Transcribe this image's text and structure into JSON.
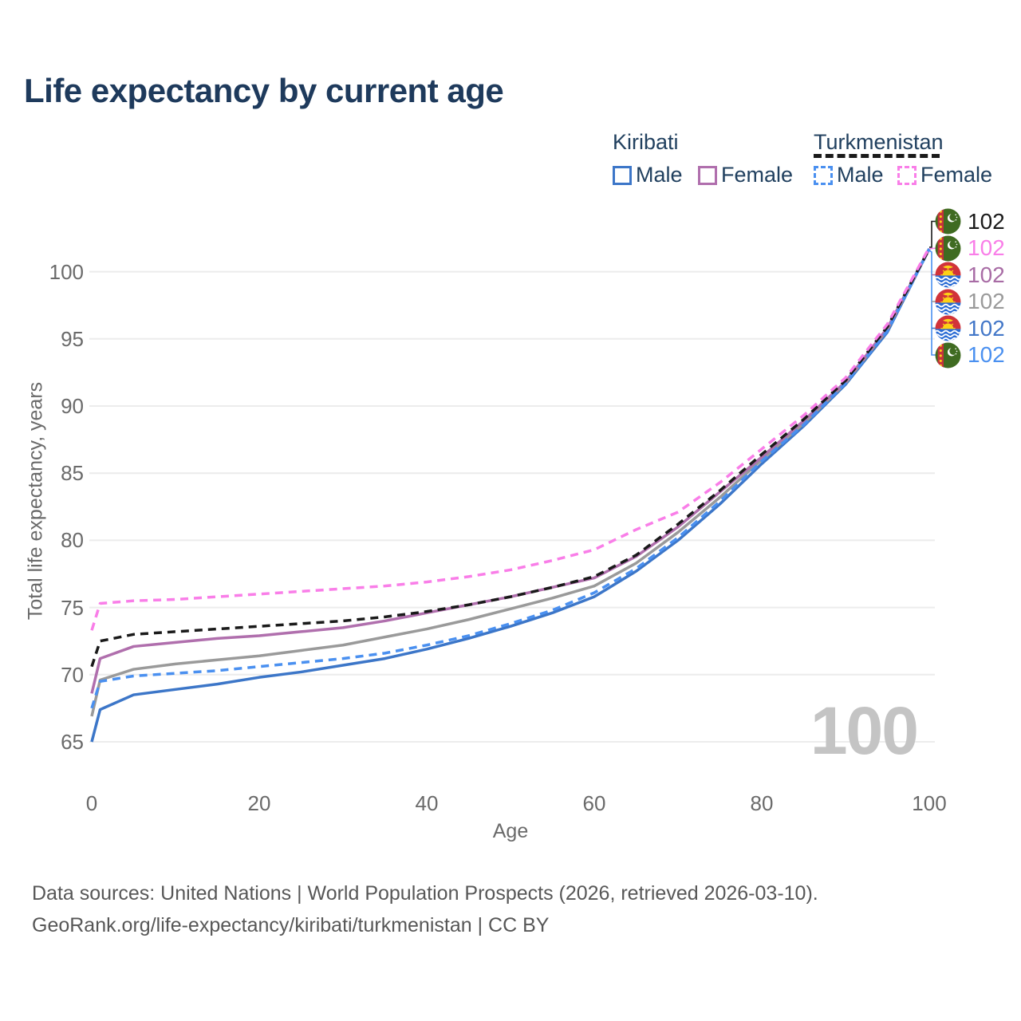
{
  "title": "Life expectancy by current age",
  "colors": {
    "kiribati_male": "#3c76c8",
    "kiribati_female": "#b06fad",
    "kiribati_both": "#9a9a9a",
    "turkmenistan_male": "#4a90f0",
    "turkmenistan_female": "#f97ee8",
    "turkmenistan_both": "#1a1a1a",
    "title_text": "#1e3a5c",
    "axis_text": "#6a6a6a",
    "grid": "#ececec",
    "watermark": "#c4c4c4"
  },
  "legend": {
    "groups": [
      {
        "name": "Kiribati",
        "underline_style": "solid",
        "underline_color": "#9a9a9a",
        "items": [
          {
            "label": "Male",
            "color": "#3c76c8",
            "dashed": false
          },
          {
            "label": "Female",
            "color": "#b06fad",
            "dashed": false
          }
        ]
      },
      {
        "name": "Turkmenistan",
        "underline_style": "dashed",
        "underline_color": "#1a1a1a",
        "items": [
          {
            "label": "Male",
            "color": "#4a90f0",
            "dashed": true
          },
          {
            "label": "Female",
            "color": "#f97ee8",
            "dashed": true
          }
        ]
      }
    ]
  },
  "chart_data": {
    "type": "line",
    "title": "Life expectancy by current age",
    "xlabel": "Age",
    "ylabel": "Total life expectancy, years",
    "xlim": [
      0,
      100
    ],
    "ylim": [
      63,
      103
    ],
    "xticks": [
      0,
      20,
      40,
      60,
      80,
      100
    ],
    "yticks": [
      65,
      70,
      75,
      80,
      85,
      90,
      95,
      100
    ],
    "grid": "horizontal-only",
    "legend_position": "top-right",
    "hovered_age": 100,
    "x": [
      0,
      1,
      5,
      10,
      15,
      20,
      25,
      30,
      35,
      40,
      45,
      50,
      55,
      60,
      65,
      70,
      75,
      80,
      85,
      90,
      95,
      100
    ],
    "series": [
      {
        "name": "Kiribati Male",
        "country": "kiribati",
        "sex": "male",
        "style": "solid",
        "color": "#3c76c8",
        "values": [
          65.0,
          67.4,
          68.5,
          68.9,
          69.3,
          69.8,
          70.2,
          70.7,
          71.2,
          71.9,
          72.7,
          73.6,
          74.6,
          75.8,
          77.7,
          80.0,
          82.7,
          85.7,
          88.5,
          91.6,
          95.5,
          101.7
        ]
      },
      {
        "name": "Kiribati Both sexes",
        "country": "kiribati",
        "sex": "both",
        "style": "solid",
        "color": "#9a9a9a",
        "values": [
          66.9,
          69.6,
          70.4,
          70.8,
          71.1,
          71.4,
          71.8,
          72.2,
          72.8,
          73.4,
          74.1,
          74.9,
          75.7,
          76.6,
          78.3,
          80.6,
          83.2,
          86.0,
          88.7,
          91.7,
          95.7,
          101.7
        ]
      },
      {
        "name": "Kiribati Female",
        "country": "kiribati",
        "sex": "female",
        "style": "solid",
        "color": "#b06fad",
        "values": [
          68.6,
          71.2,
          72.1,
          72.4,
          72.7,
          72.9,
          73.2,
          73.5,
          74.0,
          74.6,
          75.2,
          75.8,
          76.5,
          77.2,
          78.8,
          81.0,
          83.6,
          86.2,
          88.9,
          91.8,
          95.8,
          101.7
        ]
      },
      {
        "name": "Turkmenistan Male",
        "country": "turkmenistan",
        "sex": "male",
        "style": "dashed",
        "color": "#4a90f0",
        "values": [
          67.5,
          69.5,
          69.9,
          70.1,
          70.3,
          70.6,
          70.9,
          71.2,
          71.6,
          72.2,
          72.9,
          73.8,
          74.8,
          76.1,
          77.9,
          80.2,
          82.9,
          85.9,
          88.6,
          91.7,
          95.6,
          101.7
        ]
      },
      {
        "name": "Turkmenistan Both sexes",
        "country": "turkmenistan",
        "sex": "both",
        "style": "dashed",
        "color": "#1a1a1a",
        "values": [
          70.6,
          72.5,
          73.0,
          73.2,
          73.4,
          73.6,
          73.8,
          74.0,
          74.3,
          74.7,
          75.2,
          75.8,
          76.5,
          77.3,
          78.9,
          81.2,
          83.7,
          86.4,
          89.0,
          91.9,
          95.9,
          101.7
        ]
      },
      {
        "name": "Turkmenistan Female",
        "country": "turkmenistan",
        "sex": "female",
        "style": "dashed",
        "color": "#f97ee8",
        "values": [
          73.3,
          75.3,
          75.5,
          75.6,
          75.8,
          76.0,
          76.2,
          76.4,
          76.6,
          76.9,
          77.3,
          77.8,
          78.5,
          79.3,
          80.8,
          82.1,
          84.3,
          86.8,
          89.3,
          92.1,
          96.1,
          101.8
        ]
      }
    ]
  },
  "endpoint_rows": [
    {
      "country": "turkmenistan",
      "flag": "turkmenistan-flag",
      "value": "102",
      "color": "#1a1a1a"
    },
    {
      "country": "turkmenistan",
      "flag": "turkmenistan-flag",
      "value": "102",
      "color": "#f97ee8"
    },
    {
      "country": "kiribati",
      "flag": "kiribati-flag",
      "value": "102",
      "color": "#a86ca5"
    },
    {
      "country": "kiribati",
      "flag": "kiribati-flag",
      "value": "102",
      "color": "#9a9a9a"
    },
    {
      "country": "kiribati",
      "flag": "kiribati-flag",
      "value": "102",
      "color": "#4377c8"
    },
    {
      "country": "turkmenistan",
      "flag": "turkmenistan-flag",
      "value": "102",
      "color": "#4a90f0"
    }
  ],
  "watermark": "100",
  "footer": {
    "line1": "Data sources: United Nations | World Population Prospects (2026, retrieved 2026-03-10).",
    "line2": "GeoRank.org/life-expectancy/kiribati/turkmenistan | CC BY"
  }
}
